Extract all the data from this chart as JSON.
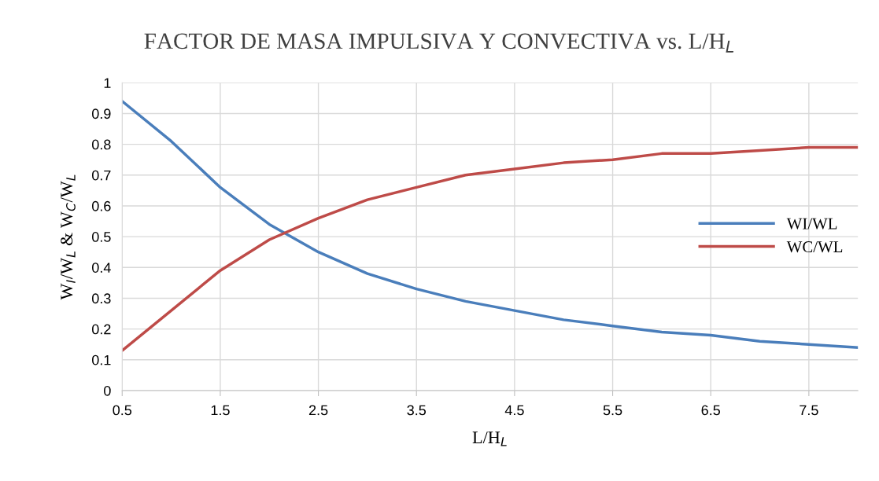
{
  "chart_data": {
    "type": "line",
    "title": "FACTOR DE MASA IMPULSIVA Y CONVECTIVA vs. L/H$_{L}$",
    "xlabel": "L/H$_{L}$",
    "ylabel": "W$_{I}$/W$_{L}$ & W$_{C}$/W$_{L}$",
    "x": [
      0.5,
      1,
      1.5,
      2,
      2.5,
      3,
      3.5,
      4,
      4.5,
      5,
      5.5,
      6,
      6.5,
      7,
      7.5,
      8
    ],
    "series": [
      {
        "name": "WI/WL",
        "color": "#4a7ebb",
        "values": [
          0.94,
          0.81,
          0.66,
          0.54,
          0.45,
          0.38,
          0.33,
          0.29,
          0.26,
          0.23,
          0.21,
          0.19,
          0.18,
          0.16,
          0.15,
          0.14
        ]
      },
      {
        "name": "WC/WL",
        "color": "#be4b48",
        "values": [
          0.13,
          0.26,
          0.39,
          0.49,
          0.56,
          0.62,
          0.66,
          0.7,
          0.72,
          0.74,
          0.75,
          0.77,
          0.77,
          0.78,
          0.79,
          0.79
        ]
      }
    ],
    "xlim": [
      0.5,
      8
    ],
    "xticks": [
      0.5,
      1.5,
      2.5,
      3.5,
      4.5,
      5.5,
      6.5,
      7.5
    ],
    "ylim": [
      0,
      1
    ],
    "yticks": [
      0,
      0.1,
      0.2,
      0.3,
      0.4,
      0.5,
      0.6,
      0.7,
      0.8,
      0.9,
      1
    ],
    "grid": true,
    "legend": "right",
    "marker": "none",
    "line_style": "solid"
  }
}
